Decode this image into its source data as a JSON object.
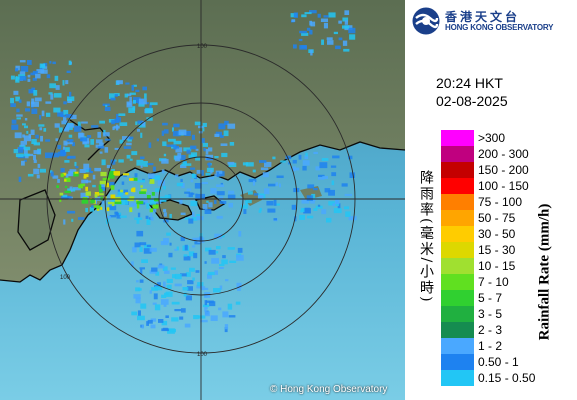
{
  "header": {
    "logo_name_cn": "香港天文台",
    "logo_name_en": "HONG KONG OBSERVATORY"
  },
  "timestamp": {
    "time": "20:24 HKT",
    "date": "02-08-2025"
  },
  "legend": {
    "title_cn": "降雨率(毫米/小時)",
    "title_en": "Rainfall Rate (mm/h)",
    "items": [
      {
        "label": ">300",
        "color": "#ff00ff"
      },
      {
        "label": "200 - 300",
        "color": "#c0007f"
      },
      {
        "label": "150 - 200",
        "color": "#c40000"
      },
      {
        "label": "100 - 150",
        "color": "#ff0000"
      },
      {
        "label": "75 - 100",
        "color": "#ff7f00"
      },
      {
        "label": "50 - 75",
        "color": "#ffa500"
      },
      {
        "label": "30 - 50",
        "color": "#ffcc00"
      },
      {
        "label": "15 - 30",
        "color": "#ddd800"
      },
      {
        "label": "10 - 15",
        "color": "#a0e030"
      },
      {
        "label": "7 - 10",
        "color": "#60e020"
      },
      {
        "label": "5 - 7",
        "color": "#30d030"
      },
      {
        "label": "3 - 5",
        "color": "#20b040"
      },
      {
        "label": "2 - 3",
        "color": "#158c50"
      },
      {
        "label": "1 - 2",
        "color": "#4aa8ff"
      },
      {
        "label": "0.50 - 1",
        "color": "#1e82f0"
      },
      {
        "label": "0.15 - 0.50",
        "color": "#22c6f5"
      }
    ]
  },
  "map": {
    "range_ring_labels": [
      "100",
      "100",
      "100"
    ],
    "copyright": "© Hong Kong Observatory",
    "colors": {
      "sea": "#5fb6d8",
      "land": "#7d8e6e",
      "coast": "#0a0a0a",
      "ring": "#2b2b2b"
    }
  }
}
